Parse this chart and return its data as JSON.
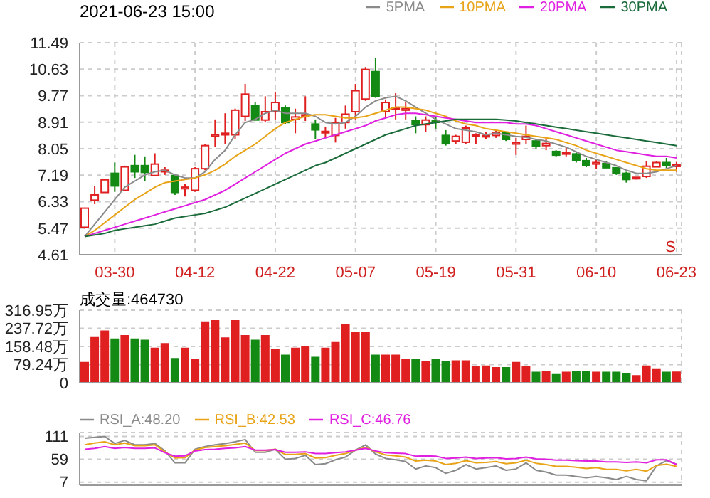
{
  "chart_data": [
    {
      "type": "candlestick",
      "title": "2021-06-23 15:00",
      "categories": [
        null,
        null,
        null,
        "03-30",
        null,
        null,
        null,
        null,
        null,
        null,
        null,
        "04-12",
        null,
        null,
        null,
        null,
        null,
        null,
        null,
        "04-22",
        null,
        null,
        null,
        null,
        null,
        null,
        null,
        "05-07",
        null,
        null,
        null,
        null,
        null,
        null,
        null,
        "05-19",
        null,
        null,
        null,
        null,
        null,
        null,
        null,
        "05-31",
        null,
        null,
        null,
        null,
        null,
        null,
        null,
        "06-10",
        null,
        null,
        null,
        null,
        null,
        null,
        null,
        "06-23"
      ],
      "ohlc": [
        [
          5.5,
          6.15,
          5.45,
          6.12
        ],
        [
          6.38,
          6.85,
          6.25,
          6.55
        ],
        [
          6.63,
          7.05,
          6.6,
          7.04
        ],
        [
          7.25,
          7.6,
          6.65,
          6.84
        ],
        [
          6.7,
          7.5,
          6.7,
          7.46
        ],
        [
          7.5,
          7.85,
          7.1,
          7.3
        ],
        [
          7.5,
          7.8,
          7.0,
          7.28
        ],
        [
          7.18,
          7.9,
          7.15,
          7.55
        ],
        [
          7.3,
          7.45,
          7.2,
          7.35
        ],
        [
          7.18,
          7.2,
          6.55,
          6.63
        ],
        [
          6.75,
          6.9,
          6.5,
          6.8
        ],
        [
          6.7,
          7.45,
          6.65,
          7.4
        ],
        [
          7.4,
          8.2,
          7.35,
          8.15
        ],
        [
          8.45,
          9.0,
          8.1,
          8.5
        ],
        [
          8.5,
          9.2,
          8.2,
          8.55
        ],
        [
          8.5,
          9.35,
          8.35,
          9.3
        ],
        [
          9.1,
          10.15,
          8.95,
          9.82
        ],
        [
          9.45,
          9.55,
          8.95,
          8.98
        ],
        [
          8.98,
          9.75,
          8.9,
          9.25
        ],
        [
          9.25,
          9.9,
          9.0,
          9.55
        ],
        [
          9.37,
          9.45,
          8.85,
          8.9
        ],
        [
          9.0,
          9.35,
          8.55,
          9.08
        ],
        [
          9.12,
          9.75,
          8.95,
          9.15
        ],
        [
          8.85,
          9.0,
          8.35,
          8.66
        ],
        [
          8.58,
          8.75,
          8.4,
          8.61
        ],
        [
          8.48,
          9.05,
          8.25,
          8.9
        ],
        [
          8.9,
          9.45,
          8.7,
          9.17
        ],
        [
          9.25,
          10.15,
          9.0,
          9.93
        ],
        [
          9.66,
          10.7,
          9.6,
          10.62
        ],
        [
          10.55,
          11.0,
          9.7,
          9.75
        ],
        [
          9.25,
          9.65,
          9.05,
          9.55
        ],
        [
          9.35,
          9.85,
          9.0,
          9.38
        ],
        [
          9.3,
          9.55,
          9.0,
          9.35
        ],
        [
          8.97,
          9.1,
          8.55,
          8.83
        ],
        [
          8.83,
          9.1,
          8.6,
          8.98
        ],
        [
          8.95,
          9.1,
          8.7,
          8.92
        ],
        [
          8.48,
          8.65,
          8.15,
          8.21
        ],
        [
          8.3,
          8.5,
          8.2,
          8.45
        ],
        [
          8.26,
          8.8,
          8.2,
          8.72
        ],
        [
          8.48,
          8.55,
          8.2,
          8.5
        ],
        [
          8.45,
          8.6,
          8.35,
          8.48
        ],
        [
          8.48,
          8.65,
          8.4,
          8.58
        ],
        [
          8.56,
          8.6,
          8.3,
          8.35
        ],
        [
          8.2,
          8.4,
          7.85,
          8.25
        ],
        [
          8.35,
          8.8,
          8.2,
          8.45
        ],
        [
          8.3,
          8.35,
          8.05,
          8.13
        ],
        [
          8.15,
          8.4,
          8.0,
          8.22
        ],
        [
          7.96,
          8.0,
          7.8,
          7.84
        ],
        [
          7.88,
          8.1,
          7.8,
          7.92
        ],
        [
          7.88,
          7.95,
          7.6,
          7.66
        ],
        [
          7.66,
          7.75,
          7.45,
          7.5
        ],
        [
          7.55,
          7.7,
          7.4,
          7.6
        ],
        [
          7.57,
          7.65,
          7.4,
          7.43
        ],
        [
          7.43,
          7.45,
          7.2,
          7.25
        ],
        [
          7.25,
          7.3,
          6.95,
          7.05
        ],
        [
          7.1,
          7.15,
          7.05,
          7.12
        ],
        [
          7.15,
          7.65,
          7.1,
          7.48
        ],
        [
          7.46,
          7.65,
          7.45,
          7.6
        ],
        [
          7.6,
          7.75,
          7.42,
          7.5
        ],
        [
          7.5,
          7.62,
          7.3,
          7.52
        ]
      ],
      "colors": [
        "#e02020",
        "#e02020",
        "#e02020",
        "#138a13",
        "#e02020",
        "#138a13",
        "#138a13",
        "#e02020",
        "#e02020",
        "#138a13",
        "#e02020",
        "#e02020",
        "#e02020",
        "#e02020",
        "#e02020",
        "#e02020",
        "#e02020",
        "#138a13",
        "#e02020",
        "#e02020",
        "#138a13",
        "#e02020",
        "#e02020",
        "#138a13",
        "#e02020",
        "#e02020",
        "#e02020",
        "#e02020",
        "#e02020",
        "#138a13",
        "#e02020",
        "#e02020",
        "#e02020",
        "#138a13",
        "#e02020",
        "#138a13",
        "#138a13",
        "#e02020",
        "#e02020",
        "#e02020",
        "#e02020",
        "#e02020",
        "#138a13",
        "#e02020",
        "#e02020",
        "#138a13",
        "#e02020",
        "#138a13",
        "#e02020",
        "#138a13",
        "#138a13",
        "#e02020",
        "#138a13",
        "#138a13",
        "#138a13",
        "#e02020",
        "#e02020",
        "#e02020",
        "#138a13",
        "#e02020"
      ],
      "series": [
        {
          "name": "5PMA",
          "type": "line",
          "color": "#8a8a8a",
          "values": [
            5.2,
            5.6,
            6.0,
            6.4,
            6.8,
            7.0,
            7.2,
            7.3,
            7.35,
            7.2,
            7.1,
            7.1,
            7.3,
            7.7,
            8.0,
            8.5,
            8.9,
            9.0,
            9.2,
            9.3,
            9.2,
            9.2,
            9.2,
            9.1,
            8.9,
            8.85,
            8.9,
            9.1,
            9.4,
            9.6,
            9.7,
            9.75,
            9.6,
            9.4,
            9.2,
            9.0,
            8.85,
            8.7,
            8.65,
            8.6,
            8.5,
            8.55,
            8.5,
            8.45,
            8.42,
            8.35,
            8.3,
            8.2,
            8.1,
            7.95,
            7.8,
            7.7,
            7.6,
            7.5,
            7.35,
            7.25,
            7.25,
            7.3,
            7.4,
            7.5
          ]
        },
        {
          "name": "10PMA",
          "type": "line",
          "color": "#e8a317",
          "values": [
            5.2,
            5.4,
            5.65,
            5.9,
            6.15,
            6.4,
            6.6,
            6.8,
            6.95,
            7.0,
            7.05,
            7.1,
            7.2,
            7.35,
            7.55,
            7.8,
            8.0,
            8.2,
            8.45,
            8.7,
            8.9,
            9.0,
            9.1,
            9.15,
            9.15,
            9.1,
            9.05,
            9.05,
            9.1,
            9.2,
            9.3,
            9.4,
            9.4,
            9.35,
            9.3,
            9.2,
            9.1,
            8.95,
            8.85,
            8.8,
            8.7,
            8.65,
            8.6,
            8.55,
            8.5,
            8.45,
            8.4,
            8.35,
            8.25,
            8.15,
            8.0,
            7.9,
            7.8,
            7.7,
            7.6,
            7.5,
            7.4,
            7.35,
            7.35,
            7.35
          ]
        },
        {
          "name": "20PMA",
          "type": "line",
          "color": "#e020e0",
          "values": [
            5.2,
            5.3,
            5.4,
            5.5,
            5.6,
            5.7,
            5.8,
            5.9,
            6.0,
            6.1,
            6.2,
            6.3,
            6.4,
            6.55,
            6.7,
            6.9,
            7.1,
            7.3,
            7.5,
            7.7,
            7.9,
            8.05,
            8.2,
            8.3,
            8.4,
            8.5,
            8.6,
            8.7,
            8.8,
            8.95,
            9.05,
            9.15,
            9.2,
            9.2,
            9.15,
            9.1,
            9.05,
            9.0,
            8.95,
            8.9,
            8.9,
            8.9,
            8.9,
            8.85,
            8.85,
            8.8,
            8.7,
            8.6,
            8.5,
            8.4,
            8.3,
            8.2,
            8.1,
            8.0,
            7.95,
            7.9,
            7.85,
            7.8,
            7.8,
            7.75
          ]
        },
        {
          "name": "30PMA",
          "type": "line",
          "color": "#1a6b3a",
          "values": [
            5.2,
            5.25,
            5.3,
            5.4,
            5.45,
            5.5,
            5.55,
            5.6,
            5.7,
            5.8,
            5.85,
            5.9,
            5.95,
            6.05,
            6.15,
            6.3,
            6.45,
            6.6,
            6.75,
            6.9,
            7.05,
            7.2,
            7.35,
            7.5,
            7.6,
            7.75,
            7.9,
            8.05,
            8.2,
            8.35,
            8.5,
            8.6,
            8.7,
            8.8,
            8.85,
            8.9,
            8.95,
            9.0,
            9.0,
            9.0,
            9.0,
            9.0,
            8.98,
            8.95,
            8.9,
            8.85,
            8.8,
            8.75,
            8.7,
            8.65,
            8.6,
            8.55,
            8.5,
            8.45,
            8.4,
            8.35,
            8.3,
            8.25,
            8.2,
            8.15
          ]
        }
      ],
      "ylim": [
        4.61,
        11.49
      ],
      "yticks": [
        4.61,
        5.47,
        6.33,
        7.19,
        8.05,
        8.91,
        9.77,
        10.63,
        11.49
      ],
      "grid": true,
      "legend": "top right",
      "annotations": [
        "S"
      ]
    },
    {
      "type": "bar",
      "categories": [
        null,
        null,
        null,
        null,
        null,
        null,
        null,
        null,
        null,
        null,
        null,
        null,
        null,
        null,
        null,
        null,
        null,
        null,
        null,
        null,
        null,
        null,
        null,
        null,
        null,
        null,
        null,
        null,
        null,
        null,
        null,
        null,
        null,
        null,
        null,
        null,
        null,
        null,
        null,
        null,
        null,
        null,
        null,
        null,
        null,
        null,
        null,
        null,
        null,
        null,
        null,
        null,
        null,
        null,
        null,
        null,
        null,
        null,
        null,
        null
      ],
      "values": [
        88,
        200,
        225,
        190,
        205,
        190,
        185,
        150,
        170,
        105,
        150,
        100,
        265,
        270,
        195,
        270,
        205,
        185,
        205,
        145,
        120,
        150,
        155,
        110,
        150,
        175,
        255,
        220,
        220,
        120,
        120,
        120,
        100,
        100,
        90,
        100,
        90,
        95,
        95,
        70,
        72,
        65,
        65,
        88,
        70,
        45,
        50,
        35,
        45,
        50,
        50,
        45,
        45,
        45,
        40,
        30,
        72,
        60,
        45,
        46
      ],
      "colors": [
        "#e02020",
        "#e02020",
        "#e02020",
        "#138a13",
        "#e02020",
        "#138a13",
        "#138a13",
        "#e02020",
        "#e02020",
        "#138a13",
        "#e02020",
        "#e02020",
        "#e02020",
        "#e02020",
        "#e02020",
        "#e02020",
        "#e02020",
        "#138a13",
        "#e02020",
        "#e02020",
        "#138a13",
        "#e02020",
        "#e02020",
        "#138a13",
        "#e02020",
        "#e02020",
        "#e02020",
        "#e02020",
        "#e02020",
        "#138a13",
        "#e02020",
        "#e02020",
        "#e02020",
        "#138a13",
        "#e02020",
        "#138a13",
        "#138a13",
        "#e02020",
        "#e02020",
        "#e02020",
        "#e02020",
        "#e02020",
        "#138a13",
        "#e02020",
        "#e02020",
        "#138a13",
        "#e02020",
        "#138a13",
        "#e02020",
        "#138a13",
        "#138a13",
        "#e02020",
        "#138a13",
        "#138a13",
        "#138a13",
        "#e02020",
        "#e02020",
        "#e02020",
        "#138a13",
        "#e02020"
      ],
      "ylim": [
        0,
        316.95
      ],
      "yticks": [
        0,
        {
          "value": 79.24,
          "label": "79.24万"
        },
        {
          "value": 158.48,
          "label": "158.48万"
        },
        {
          "value": 237.72,
          "label": "237.72万"
        },
        {
          "value": 316.95,
          "label": "316.95万"
        }
      ],
      "grid": true,
      "tick_labels": "y",
      "annotations": [
        "成交量:464730"
      ]
    },
    {
      "type": "line",
      "categories": [
        null,
        null,
        null,
        null,
        null,
        null,
        null,
        null,
        null,
        null,
        null,
        null,
        null,
        null,
        null,
        null,
        null,
        null,
        null,
        null,
        null,
        null,
        null,
        null,
        null,
        null,
        null,
        null,
        null,
        null,
        null,
        null,
        null,
        null,
        null,
        null,
        null,
        null,
        null,
        null,
        null,
        null,
        null,
        null,
        null,
        null,
        null,
        null,
        null,
        null,
        null,
        null,
        null,
        null,
        null,
        null,
        null,
        null,
        null,
        null
      ],
      "series": [
        {
          "name": "RSI_A:48.20",
          "color": "#8a8a8a",
          "values": [
            107,
            109,
            111,
            95,
            102,
            92,
            92,
            95,
            78,
            51,
            51,
            82,
            88,
            92,
            95,
            99,
            104,
            75,
            75,
            82,
            59,
            61,
            68,
            47,
            49,
            58,
            64,
            80,
            92,
            71,
            61,
            58,
            54,
            37,
            44,
            40,
            27,
            34,
            47,
            37,
            40,
            44,
            34,
            37,
            51,
            34,
            30,
            23,
            23,
            20,
            17,
            20,
            17,
            13,
            20,
            13,
            10,
            44,
            56,
            48
          ]
        },
        {
          "name": "RSI_B:42.53",
          "color": "#e8a317",
          "values": [
            92,
            96,
            99,
            92,
            96,
            90,
            90,
            92,
            76,
            62,
            63,
            80,
            86,
            88,
            90,
            93,
            96,
            79,
            79,
            82,
            70,
            70,
            72,
            62,
            63,
            68,
            72,
            80,
            86,
            76,
            69,
            67,
            64,
            55,
            57,
            55,
            47,
            50,
            56,
            51,
            52,
            54,
            49,
            51,
            57,
            50,
            47,
            43,
            43,
            41,
            38,
            40,
            36,
            36,
            33,
            36,
            32,
            45,
            48,
            43
          ]
        },
        {
          "name": "RSI_C:46.76",
          "color": "#e020e0",
          "values": [
            82,
            84,
            88,
            84,
            86,
            84,
            84,
            85,
            74,
            66,
            67,
            78,
            81,
            82,
            84,
            85,
            88,
            80,
            80,
            81,
            75,
            75,
            76,
            72,
            72,
            74,
            76,
            80,
            84,
            78,
            74,
            73,
            72,
            66,
            67,
            66,
            61,
            62,
            64,
            61,
            62,
            63,
            60,
            61,
            64,
            60,
            59,
            57,
            57,
            56,
            55,
            55,
            53,
            53,
            52,
            53,
            51,
            58,
            58,
            47
          ]
        }
      ],
      "ylim": [
        0,
        120
      ],
      "yticks": [
        7,
        59,
        111
      ],
      "grid": true,
      "tick_labels": "y",
      "legend": "top left"
    }
  ]
}
